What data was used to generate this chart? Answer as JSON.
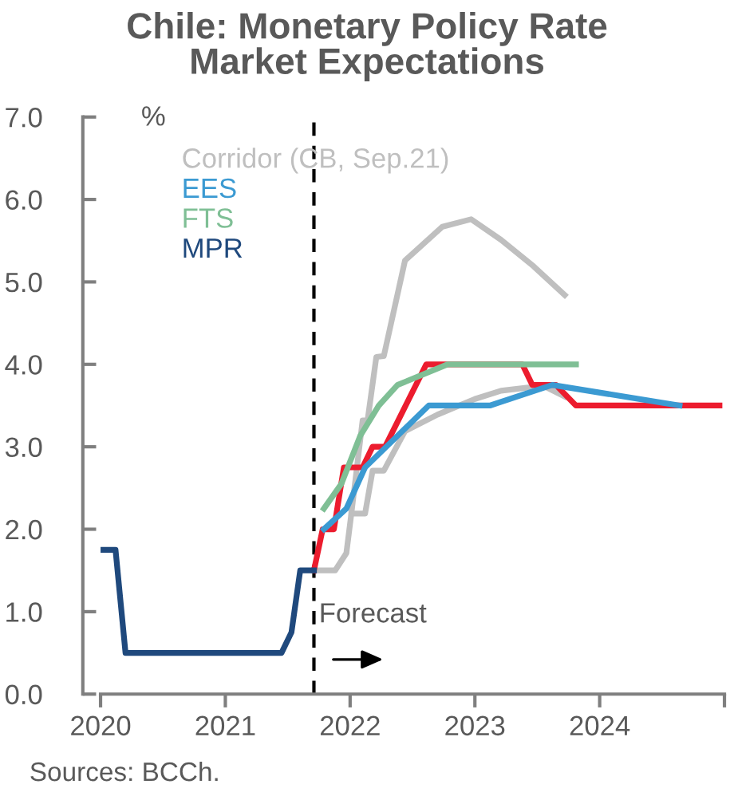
{
  "chart_data": {
    "type": "line",
    "title": "Chile: Monetary Policy Rate\nMarket Expectations",
    "ylabel": "%",
    "xlim": [
      2020,
      2025
    ],
    "xticks": [
      2020,
      2021,
      2022,
      2023,
      2024,
      {
        "value": 2025,
        "label": null
      }
    ],
    "ylim": [
      0,
      7
    ],
    "yticks": [
      {
        "value": 0,
        "label": "0.0"
      },
      {
        "value": 1,
        "label": "1.0"
      },
      {
        "value": 2,
        "label": "2.0"
      },
      {
        "value": 3,
        "label": "3.0"
      },
      {
        "value": 4,
        "label": "4.0"
      },
      {
        "value": 5,
        "label": "5.0"
      },
      {
        "value": 6,
        "label": "6.0"
      },
      {
        "value": 7,
        "label": "7.0"
      }
    ],
    "grid": false,
    "legend": "top left",
    "marker": "none",
    "line_style": "solid",
    "ref_lines": [
      {
        "axis": "x",
        "value": 2021.71,
        "color": "#000000",
        "line_style": "dashed"
      }
    ],
    "annotations": [
      {
        "text": "Forecast",
        "x": 2021.75,
        "y": 0.8
      },
      "Sources: BCCh."
    ],
    "series": [
      {
        "name": "Corridor (CB, Sep.21)",
        "color": "#bfbfbf",
        "x": [
          2021.71,
          2021.88,
          2021.97,
          2022.01,
          2022.1,
          2022.14,
          2022.21,
          2022.27,
          2022.44,
          2022.74,
          2022.97,
          2023.21,
          2023.47,
          2023.72
        ],
        "values": [
          1.5,
          1.5,
          1.71,
          2.19,
          3.32,
          3.32,
          4.09,
          4.1,
          5.26,
          5.67,
          5.76,
          5.51,
          5.19,
          4.84
        ]
      },
      {
        "color": "#bfbfbf",
        "x": [
          2022.01,
          2022.12,
          2022.18,
          2022.27,
          2022.44,
          2022.7,
          2023.0,
          2023.21,
          2023.55,
          2023.72
        ],
        "values": [
          2.19,
          2.19,
          2.71,
          2.71,
          3.19,
          3.39,
          3.58,
          3.68,
          3.74,
          3.61
        ]
      },
      {
        "color": "#ec1c2e",
        "x": [
          2021.71,
          2021.78,
          2021.87,
          2021.95,
          2022.1,
          2022.18,
          2022.28,
          2022.61,
          2023.38,
          2023.46,
          2023.65,
          2023.81,
          2024.96
        ],
        "values": [
          1.5,
          2.0,
          2.0,
          2.75,
          2.75,
          3.0,
          3.0,
          4.0,
          4.0,
          3.75,
          3.75,
          3.5,
          3.5
        ]
      },
      {
        "name": "EES",
        "color": "#3b9ad2",
        "x": [
          2021.79,
          2021.97,
          2022.12,
          2022.63,
          2023.12,
          2023.62,
          2024.64
        ],
        "values": [
          2.0,
          2.25,
          2.75,
          3.5,
          3.5,
          3.75,
          3.5
        ]
      },
      {
        "name": "FTS",
        "color": "#7fbf95",
        "x": [
          2021.79,
          2021.93,
          2022.08,
          2022.23,
          2022.38,
          2022.78,
          2023.81
        ],
        "values": [
          2.25,
          2.55,
          3.13,
          3.5,
          3.75,
          4.0,
          4.0
        ]
      },
      {
        "name": "MPR",
        "color": "#1f497d",
        "x": [
          2020.0,
          2020.12,
          2020.2,
          2021.45,
          2021.53,
          2021.6,
          2021.71
        ],
        "values": [
          1.75,
          1.75,
          0.5,
          0.5,
          0.75,
          1.5,
          1.5
        ]
      }
    ]
  }
}
